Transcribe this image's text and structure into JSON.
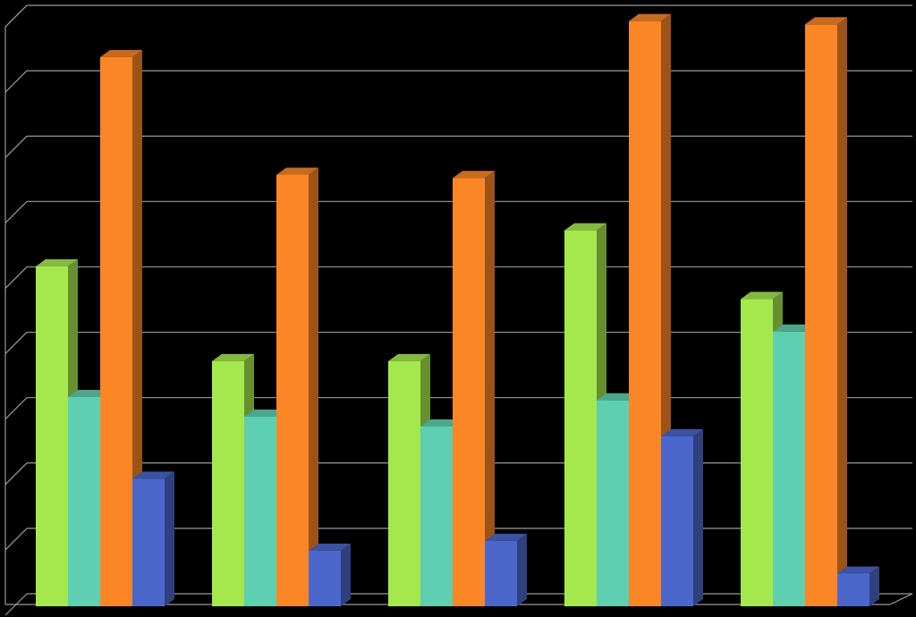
{
  "chart_data": {
    "type": "bar3d",
    "categories": [
      null,
      null,
      null,
      null,
      null
    ],
    "series": [
      {
        "color": "#a5e84e",
        "values": [
          5.2,
          3.75,
          3.75,
          5.75,
          4.7
        ]
      },
      {
        "color": "#5ecfb0",
        "values": [
          3.2,
          2.9,
          2.75,
          3.15,
          4.2
        ]
      },
      {
        "color": "#fb8626",
        "values": [
          8.4,
          6.6,
          6.55,
          8.95,
          8.9
        ]
      },
      {
        "color": "#4b67cc",
        "values": [
          1.95,
          0.85,
          1.0,
          2.6,
          0.5
        ]
      }
    ],
    "ylim": [
      0,
      9
    ],
    "yticks": [
      0,
      1,
      2,
      3,
      4,
      5,
      6,
      7,
      8,
      9
    ],
    "grid": true
  }
}
